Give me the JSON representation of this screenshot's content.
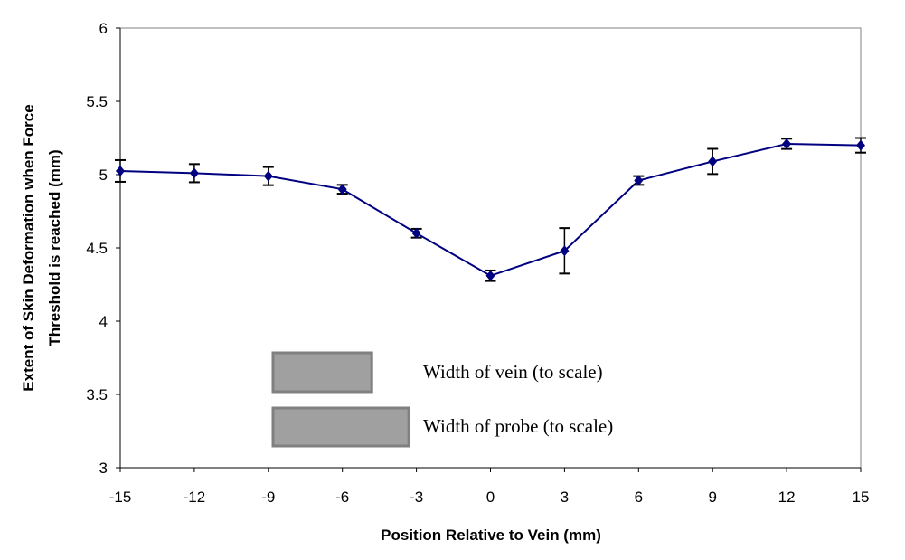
{
  "chart_data": {
    "type": "line",
    "title": "",
    "xlabel": "Position Relative to Vein (mm)",
    "ylabel_lines": [
      "Extent of Skin Deformation when Force",
      "Threshold is reached (mm)"
    ],
    "x": [
      -15,
      -12,
      -9,
      -6,
      -3,
      0,
      3,
      6,
      9,
      12,
      15
    ],
    "series": [
      {
        "name": "Skin deformation",
        "color": "#000080",
        "marker": "diamond",
        "values": [
          5.025,
          5.01,
          4.99,
          4.9,
          4.6,
          4.31,
          4.48,
          4.96,
          5.09,
          5.21,
          5.2
        ],
        "error": [
          0.074,
          0.062,
          0.062,
          0.03,
          0.03,
          0.036,
          0.155,
          0.03,
          0.086,
          0.035,
          0.05
        ]
      }
    ],
    "xlim": [
      -15,
      15
    ],
    "ylim": [
      3,
      6
    ],
    "xticks": [
      "-15",
      "-12",
      "-9",
      "-6",
      "-3",
      "0",
      "3",
      "6",
      "9",
      "12",
      "15"
    ],
    "yticks": [
      "3",
      "3.5",
      "4",
      "4.5",
      "5",
      "5.5",
      "6"
    ],
    "grid": false,
    "annotations": [
      {
        "label": "Width of vein (to scale)",
        "width_mm": 4.0,
        "fill": "#a0a0a0"
      },
      {
        "label": "Width of probe (to scale)",
        "width_mm": 5.5,
        "fill": "#a0a0a0"
      }
    ]
  }
}
